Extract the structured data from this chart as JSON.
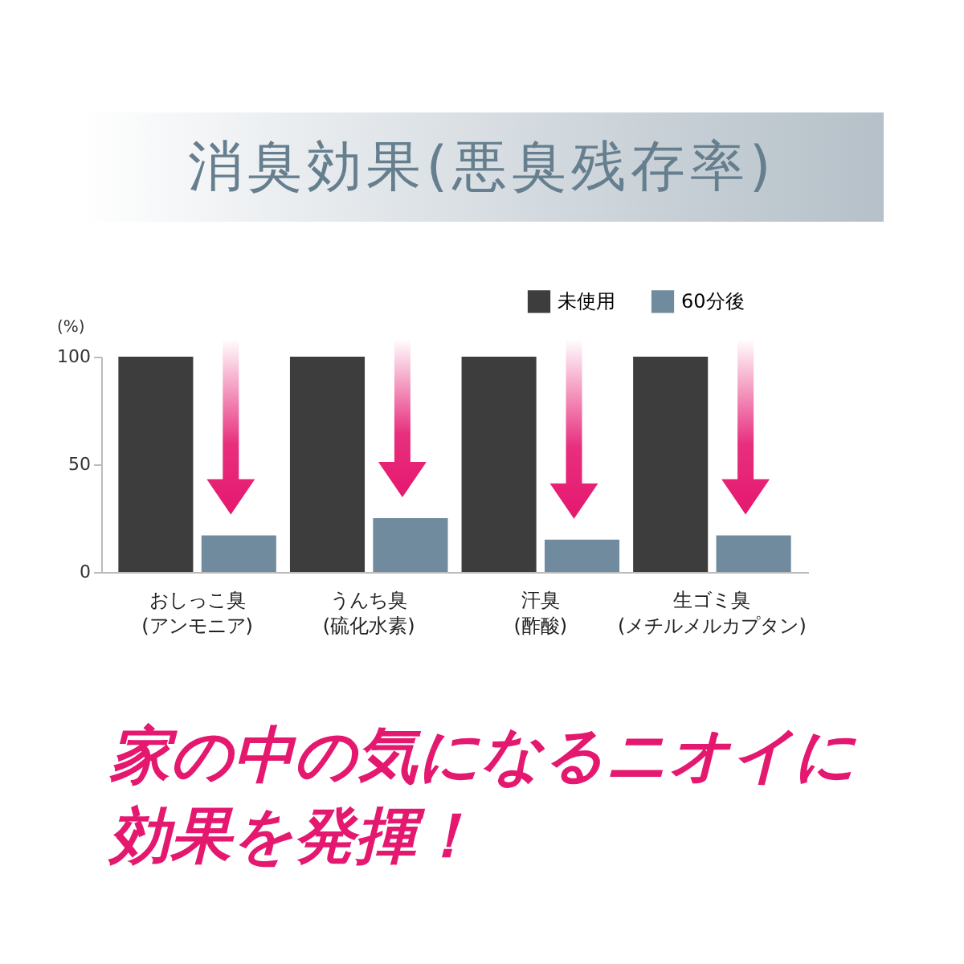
{
  "chart_data": {
    "type": "bar",
    "title": "消臭効果(悪臭残存率)",
    "ylabel": "(%)",
    "categories": [
      "おしっこ臭\n(アンモニア)",
      "うんち臭\n(硫化水素)",
      "汗臭\n(酢酸)",
      "生ゴミ臭\n(メチルメルカプタン)"
    ],
    "series": [
      {
        "name": "未使用",
        "color": "#3d3d3d",
        "values": [
          100,
          100,
          100,
          100
        ]
      },
      {
        "name": "60分後",
        "color": "#6f8b9d",
        "values": [
          17,
          25,
          15,
          17
        ]
      }
    ],
    "ylim": [
      0,
      100
    ],
    "yticks": [
      0,
      50,
      100
    ],
    "grid": false,
    "legend": "top right",
    "annotations": [
      "家の中の気になるニオイに効果を発揮！"
    ]
  }
}
